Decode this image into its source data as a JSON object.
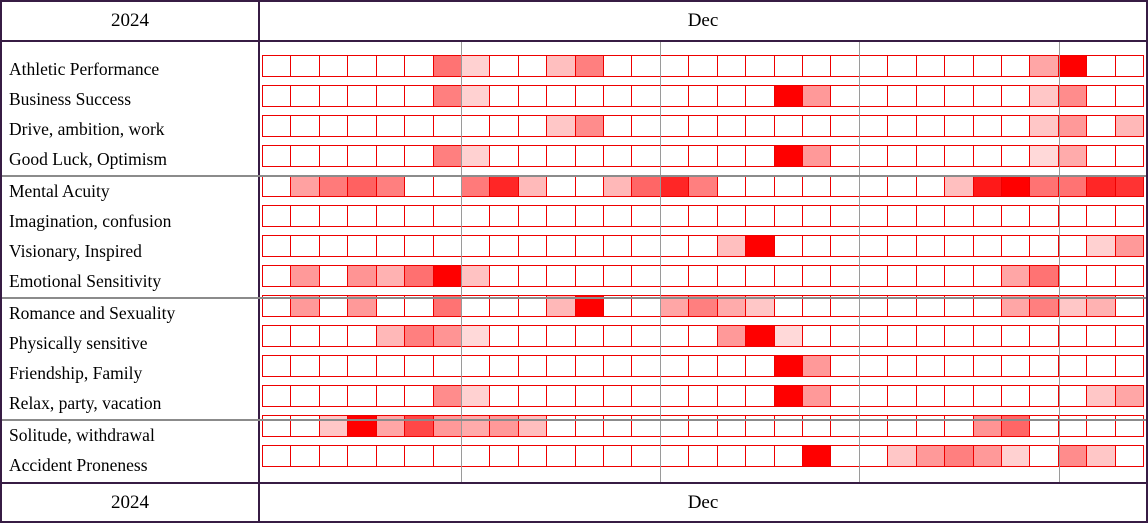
{
  "header_top": {
    "year": "2024",
    "month": "Dec"
  },
  "header_bottom": {
    "year": "2024",
    "month": "Dec"
  },
  "colors": {
    "outer_border": "#371c44",
    "cell_border_red": "#ee0000",
    "heat_base_rgb": "255,0,0",
    "week_line_gray": "#9a9a9a",
    "group_line_gray": "#8b8b8b"
  },
  "chart_data": {
    "type": "heatmap",
    "x_axis": "day of month (1-31), December 2024",
    "x_range": [
      1,
      31
    ],
    "week_dividers_after_day": [
      7,
      14,
      21,
      28
    ],
    "intensity_scale": "0 = blank (white) to 1 = strongest (pure red)",
    "legend_position": "none",
    "grid": "red cell borders, gray week dividers, gray group separators",
    "groups": [
      {
        "rows": [
          {
            "label": "Athletic Performance",
            "values": [
              0,
              0,
              0,
              0,
              0,
              0,
              0.55,
              0.18,
              0,
              0,
              0.25,
              0.5,
              0,
              0,
              0,
              0,
              0,
              0,
              0,
              0,
              0,
              0,
              0,
              0,
              0,
              0,
              0,
              0.35,
              1,
              0,
              0
            ]
          },
          {
            "label": "Business Success",
            "values": [
              0,
              0,
              0,
              0,
              0,
              0,
              0.5,
              0.18,
              0,
              0,
              0,
              0,
              0,
              0,
              0,
              0,
              0,
              0,
              1,
              0.4,
              0,
              0,
              0,
              0,
              0,
              0,
              0,
              0.22,
              0.45,
              0,
              0
            ]
          },
          {
            "label": "Drive, ambition, work",
            "values": [
              0,
              0,
              0,
              0,
              0,
              0,
              0,
              0,
              0,
              0,
              0.22,
              0.45,
              0,
              0,
              0,
              0,
              0,
              0,
              0,
              0,
              0,
              0,
              0,
              0,
              0,
              0,
              0,
              0.22,
              0.4,
              0,
              0.28
            ]
          },
          {
            "label": "Good Luck, Optimism",
            "values": [
              0,
              0,
              0,
              0,
              0,
              0,
              0.5,
              0.18,
              0,
              0,
              0,
              0,
              0,
              0,
              0,
              0,
              0,
              0,
              1,
              0.4,
              0,
              0,
              0,
              0,
              0,
              0,
              0,
              0.15,
              0.33,
              0,
              0
            ]
          }
        ]
      },
      {
        "rows": [
          {
            "label": "Mental Acuity",
            "values": [
              0,
              0.37,
              0.52,
              0.62,
              0.5,
              0,
              0,
              0.52,
              0.85,
              0.27,
              0,
              0,
              0.28,
              0.6,
              0.85,
              0.5,
              0,
              0,
              0,
              0,
              0,
              0,
              0,
              0,
              0.25,
              0.9,
              1,
              0.55,
              0.55,
              0.85,
              0.8
            ]
          },
          {
            "label": "Imagination, confusion",
            "values": [
              0,
              0,
              0,
              0,
              0,
              0,
              0,
              0,
              0,
              0,
              0,
              0,
              0,
              0,
              0,
              0,
              0,
              0,
              0,
              0,
              0,
              0,
              0,
              0,
              0,
              0,
              0,
              0,
              0,
              0,
              0
            ]
          },
          {
            "label": "Visionary, Inspired",
            "values": [
              0,
              0,
              0,
              0,
              0,
              0,
              0,
              0,
              0,
              0,
              0,
              0,
              0,
              0,
              0,
              0,
              0.25,
              1,
              0,
              0,
              0,
              0,
              0,
              0,
              0,
              0,
              0,
              0,
              0,
              0.18,
              0.4
            ]
          },
          {
            "label": "Emotional Sensitivity",
            "values": [
              0,
              0.4,
              0,
              0.42,
              0.3,
              0.56,
              1,
              0.24,
              0,
              0,
              0,
              0,
              0,
              0,
              0,
              0,
              0,
              0,
              0,
              0,
              0,
              0,
              0,
              0,
              0,
              0,
              0.35,
              0.55,
              0,
              0,
              0
            ]
          }
        ]
      },
      {
        "rows": [
          {
            "label": "Romance and Sexuality",
            "values": [
              0,
              0.4,
              0,
              0.4,
              0,
              0,
              0.55,
              0,
              0,
              0,
              0.28,
              1,
              0,
              0,
              0.35,
              0.5,
              0.33,
              0.22,
              0,
              0,
              0,
              0,
              0,
              0,
              0,
              0,
              0.35,
              0.5,
              0.22,
              0.3,
              0
            ]
          },
          {
            "label": "Physically sensitive",
            "values": [
              0,
              0,
              0,
              0,
              0.28,
              0.5,
              0.42,
              0.15,
              0,
              0,
              0,
              0,
              0,
              0,
              0,
              0,
              0.4,
              1,
              0.15,
              0,
              0,
              0,
              0,
              0,
              0,
              0,
              0,
              0,
              0,
              0,
              0
            ]
          },
          {
            "label": "Friendship, Family",
            "values": [
              0,
              0,
              0,
              0,
              0,
              0,
              0,
              0,
              0,
              0,
              0,
              0,
              0,
              0,
              0,
              0,
              0,
              0,
              1,
              0.4,
              0,
              0,
              0,
              0,
              0,
              0,
              0,
              0,
              0,
              0,
              0
            ]
          },
          {
            "label": "Relax, party, vacation",
            "values": [
              0,
              0,
              0,
              0,
              0,
              0,
              0.45,
              0.18,
              0,
              0,
              0,
              0,
              0,
              0,
              0,
              0,
              0,
              0,
              1,
              0.4,
              0,
              0,
              0,
              0,
              0,
              0,
              0,
              0,
              0,
              0.22,
              0.35
            ]
          }
        ]
      },
      {
        "rows": [
          {
            "label": "Solitude, withdrawal",
            "values": [
              0,
              0,
              0.22,
              1,
              0.35,
              0.72,
              0.4,
              0.33,
              0.4,
              0.25,
              0,
              0,
              0,
              0,
              0,
              0,
              0,
              0,
              0,
              0,
              0,
              0,
              0,
              0,
              0,
              0.42,
              0.6,
              0,
              0,
              0,
              0
            ]
          },
          {
            "label": "Accident Proneness",
            "values": [
              0,
              0,
              0,
              0,
              0,
              0,
              0,
              0,
              0,
              0,
              0,
              0,
              0,
              0,
              0,
              0,
              0,
              0,
              0,
              1,
              0,
              0,
              0.22,
              0.4,
              0.5,
              0.4,
              0.18,
              0,
              0.45,
              0.22,
              0
            ]
          }
        ]
      }
    ]
  }
}
